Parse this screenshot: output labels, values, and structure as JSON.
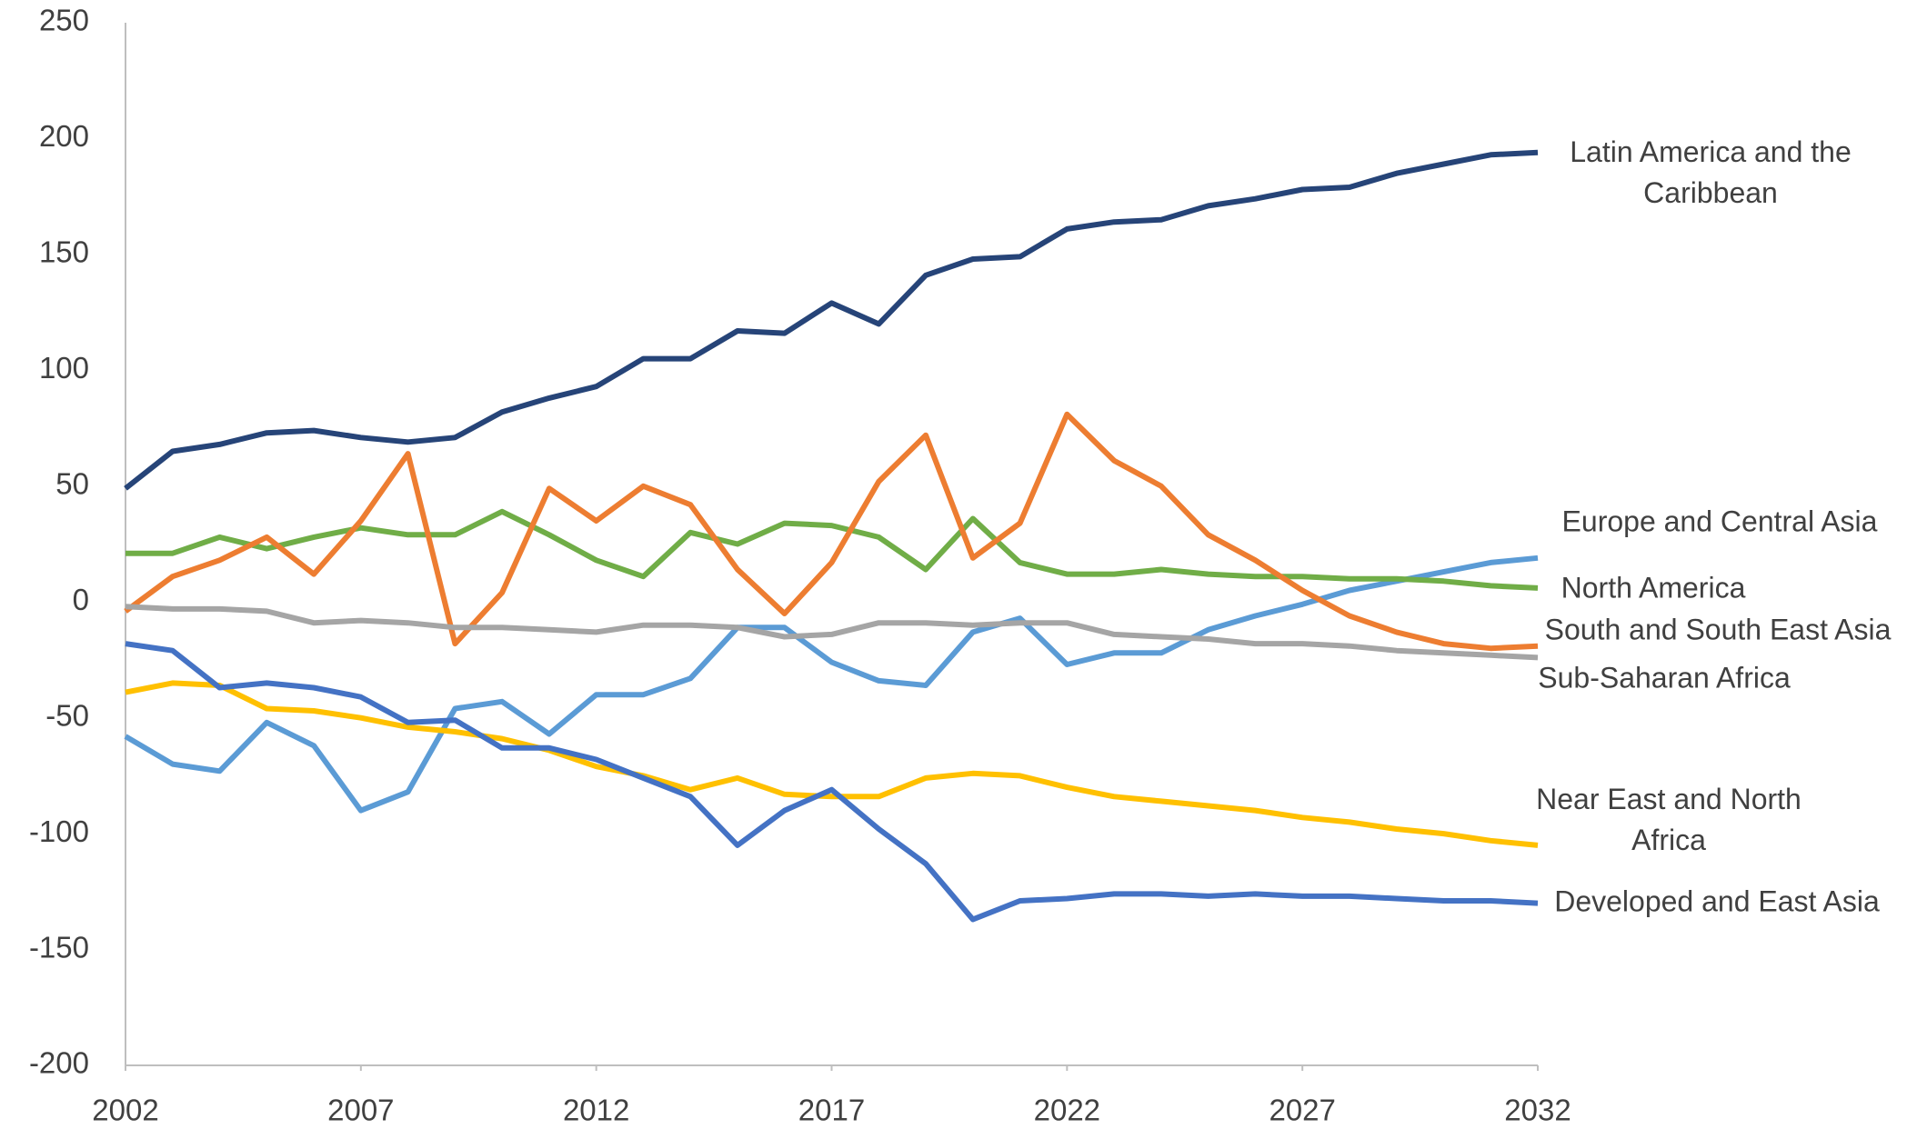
{
  "chart_data": {
    "type": "line",
    "x": [
      2002,
      2003,
      2004,
      2005,
      2006,
      2007,
      2008,
      2009,
      2010,
      2011,
      2012,
      2013,
      2014,
      2015,
      2016,
      2017,
      2018,
      2019,
      2020,
      2021,
      2022,
      2023,
      2024,
      2025,
      2026,
      2027,
      2028,
      2029,
      2030,
      2031,
      2032
    ],
    "xlim": [
      2002,
      2032
    ],
    "xticks": [
      2002,
      2007,
      2012,
      2017,
      2022,
      2027,
      2032
    ],
    "ylim": [
      -200,
      250
    ],
    "yticks": [
      -200,
      -150,
      -100,
      -50,
      0,
      50,
      100,
      150,
      200,
      250
    ],
    "grid": false,
    "series": [
      {
        "name": "Latin America and the Caribbean",
        "color": "#264478",
        "values": [
          49,
          65,
          68,
          73,
          74,
          71,
          69,
          71,
          82,
          88,
          93,
          105,
          105,
          117,
          116,
          129,
          120,
          141,
          148,
          149,
          161,
          164,
          165,
          171,
          174,
          178,
          179,
          185,
          189,
          193,
          194
        ]
      },
      {
        "name": "Europe and Central Asia",
        "color": "#5B9BD5",
        "values": [
          -58,
          -70,
          -73,
          -52,
          -62,
          -90,
          -82,
          -46,
          -43,
          -57,
          -40,
          -40,
          -33,
          -11,
          -11,
          -26,
          -34,
          -36,
          -13,
          -7,
          -27,
          -22,
          -22,
          -12,
          -6,
          -1,
          5,
          9,
          13,
          17,
          19
        ]
      },
      {
        "name": "North America",
        "color": "#70AD47",
        "values": [
          21,
          21,
          28,
          23,
          28,
          32,
          29,
          29,
          39,
          29,
          18,
          11,
          30,
          25,
          34,
          33,
          28,
          14,
          36,
          17,
          12,
          12,
          14,
          12,
          11,
          11,
          10,
          10,
          9,
          7,
          6
        ]
      },
      {
        "name": "South and South East Asia",
        "color": "#ED7D31",
        "values": [
          -4,
          11,
          18,
          28,
          12,
          35,
          64,
          -18,
          4,
          49,
          35,
          50,
          42,
          14,
          -5,
          17,
          52,
          72,
          19,
          34,
          81,
          61,
          50,
          29,
          18,
          5,
          -6,
          -13,
          -18,
          -20,
          -19
        ]
      },
      {
        "name": "Sub-Saharan Africa",
        "color": "#A5A5A5",
        "values": [
          -2,
          -3,
          -3,
          -4,
          -9,
          -8,
          -9,
          -11,
          -11,
          -12,
          -13,
          -10,
          -10,
          -11,
          -15,
          -14,
          -9,
          -9,
          -10,
          -9,
          -9,
          -14,
          -15,
          -16,
          -18,
          -18,
          -19,
          -21,
          -22,
          -23,
          -24
        ]
      },
      {
        "name": "Near East and North Africa",
        "color": "#FFC000",
        "values": [
          -39,
          -35,
          -36,
          -46,
          -47,
          -50,
          -54,
          -56,
          -59,
          -64,
          -71,
          -75,
          -81,
          -76,
          -83,
          -84,
          -84,
          -76,
          -74,
          -75,
          -80,
          -84,
          -86,
          -88,
          -90,
          -93,
          -95,
          -98,
          -100,
          -103,
          -105
        ]
      },
      {
        "name": "Developed and East Asia",
        "color": "#4472C4",
        "values": [
          -18,
          -21,
          -37,
          -35,
          -37,
          -41,
          -52,
          -51,
          -63,
          -63,
          -68,
          -76,
          -84,
          -105,
          -90,
          -81,
          -98,
          -113,
          -137,
          -129,
          -128,
          -126,
          -126,
          -127,
          -126,
          -127,
          -127,
          -128,
          -129,
          -129,
          -130
        ]
      }
    ]
  }
}
